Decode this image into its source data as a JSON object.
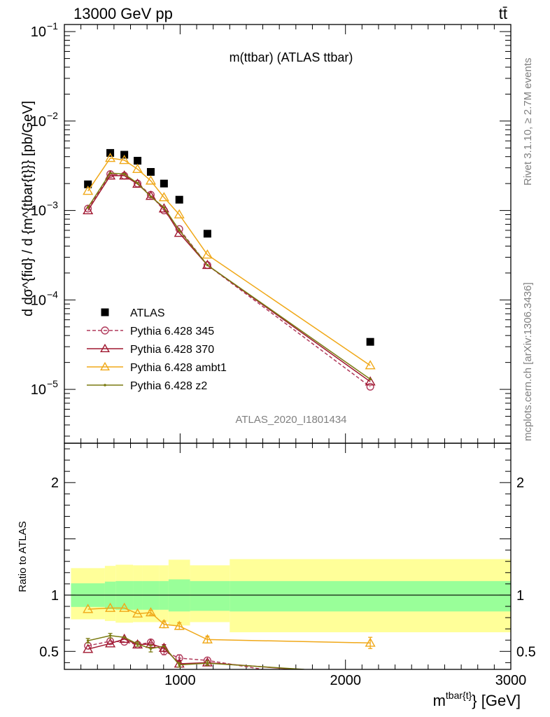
{
  "header": {
    "left": "13000 GeV pp",
    "right": "tt̄"
  },
  "side_labels": {
    "rivet": "Rivet 3.1.10, ≥ 2.7M events",
    "mcplots": "mcplots.cern.ch [arXiv:1306.3436]"
  },
  "watermark": "ATLAS_2020_I1801434",
  "chart_data": [
    {
      "type": "scatter",
      "title": "m(ttbar) (ATLAS ttbar)",
      "ylabel": "d dσ^{fid} / d {m^{tbar{t}}} [pb/GeV]",
      "yscale": "log",
      "xlim": [
        300,
        3000
      ],
      "ylim": [
        2.5e-06,
        0.12
      ],
      "yticks": [
        {
          "value": 0.1,
          "label": "10^-1",
          "base": "10",
          "exp": "−1"
        },
        {
          "value": 0.01,
          "label": "10^-2",
          "base": "10",
          "exp": "−2"
        },
        {
          "value": 0.001,
          "label": "10^-3",
          "base": "10",
          "exp": "−3"
        },
        {
          "value": 0.0001,
          "label": "10^-4",
          "base": "10",
          "exp": "−4"
        },
        {
          "value": 1e-05,
          "label": "10^-5",
          "base": "10",
          "exp": "−5"
        }
      ],
      "x": [
        442.5,
        577.5,
        662.5,
        742.5,
        822.5,
        902.5,
        995,
        1165,
        2150
      ],
      "series": [
        {
          "name": "ATLAS",
          "color": "#000000",
          "marker": "square",
          "values": [
            0.00196,
            0.0044,
            0.0042,
            0.0036,
            0.0027,
            0.002,
            0.00132,
            0.00055,
            3.4e-05
          ]
        },
        {
          "name": "Pythia 6.428 345",
          "color": "#b03a5b",
          "marker": "circle",
          "dash": true,
          "values": [
            0.00105,
            0.00255,
            0.00245,
            0.002,
            0.0015,
            0.001,
            0.00062,
            0.000245,
            1.07e-05
          ]
        },
        {
          "name": "Pythia 6.428 370",
          "color": "#a01830",
          "marker": "triangle",
          "values": [
            0.001,
            0.00245,
            0.00245,
            0.00198,
            0.00145,
            0.00105,
            0.00056,
            0.000245,
            1.22e-05
          ]
        },
        {
          "name": "Pythia 6.428 ambt1",
          "color": "#f0a818",
          "marker": "triangle",
          "values": [
            0.00165,
            0.00385,
            0.00365,
            0.0029,
            0.00215,
            0.0014,
            0.0009,
            0.00032,
            1.85e-05
          ]
        },
        {
          "name": "Pythia 6.428 z2",
          "color": "#7a7a10",
          "marker": "dot",
          "values": [
            0.00108,
            0.00262,
            0.00255,
            0.00202,
            0.00143,
            0.00108,
            0.0006,
            0.000245,
            1.3e-05
          ]
        }
      ],
      "legend": "center-left"
    },
    {
      "type": "scatter",
      "ylabel": "Ratio to ATLAS",
      "xlabel": "m^{tbar{t}} [GeV]",
      "xlabel_main": "m",
      "xlabel_sup": "tbar{t}",
      "xlabel_tail": "} [GeV]",
      "xlim": [
        300,
        3000
      ],
      "ylim": [
        0.34,
        2.35
      ],
      "xticks": [
        {
          "value": 1000,
          "label": "1000"
        },
        {
          "value": 2000,
          "label": "2000"
        },
        {
          "value": 3000,
          "label": "3000"
        }
      ],
      "yticks": [
        {
          "value": 0.5,
          "label": "0.5"
        },
        {
          "value": 1,
          "label": "1"
        },
        {
          "value": 2,
          "label": "2"
        }
      ],
      "bands": {
        "edges": [
          340,
          545,
          610,
          715,
          770,
          875,
          930,
          1060,
          1300,
          3000
        ],
        "inner_lo": [
          0.895,
          0.875,
          0.87,
          0.87,
          0.87,
          0.87,
          0.855,
          0.86,
          0.855
        ],
        "inner_hi": [
          1.105,
          1.12,
          1.125,
          1.125,
          1.125,
          1.125,
          1.14,
          1.125,
          1.125
        ],
        "outer_lo": [
          0.785,
          0.77,
          0.755,
          0.76,
          0.76,
          0.76,
          0.73,
          0.76,
          0.67
        ],
        "outer_hi": [
          1.24,
          1.26,
          1.27,
          1.265,
          1.265,
          1.265,
          1.315,
          1.265,
          1.32
        ],
        "inner_color": "#99ff99",
        "outer_color": "#ffff99"
      },
      "reference": 1.0,
      "series": [
        {
          "name": "Pythia 6.428 345",
          "color": "#b03a5b",
          "marker": "circle",
          "dash": true,
          "x": [
            442.5,
            577.5,
            662.5,
            742.5,
            822.5,
            902.5,
            995,
            1165,
            1500
          ],
          "values": [
            0.55,
            0.59,
            0.585,
            0.56,
            0.58,
            0.5,
            0.44,
            0.42,
            0.34
          ],
          "err": [
            0,
            0,
            0,
            0,
            0,
            0.03,
            0.03,
            0,
            0
          ]
        },
        {
          "name": "Pythia 6.428 370",
          "color": "#a01830",
          "marker": "triangle",
          "x": [
            442.5,
            577.5,
            662.5,
            742.5,
            822.5,
            902.5,
            995,
            1165,
            1700
          ],
          "values": [
            0.52,
            0.57,
            0.61,
            0.56,
            0.565,
            0.53,
            0.39,
            0.4,
            0.34
          ],
          "err": [
            0,
            0,
            0,
            0,
            0,
            0.03,
            0.03,
            0.02,
            0
          ]
        },
        {
          "name": "Pythia 6.428 ambt1",
          "color": "#f0a818",
          "marker": "triangle",
          "x": [
            442.5,
            577.5,
            662.5,
            742.5,
            822.5,
            902.5,
            995,
            1165,
            2150
          ],
          "values": [
            0.875,
            0.885,
            0.885,
            0.835,
            0.845,
            0.74,
            0.725,
            0.605,
            0.575
          ],
          "err": [
            0,
            0,
            0,
            0,
            0.02,
            0.03,
            0.03,
            0.03,
            0.05
          ]
        },
        {
          "name": "Pythia 6.428 z2",
          "color": "#7a7a10",
          "marker": "dot",
          "x": [
            442.5,
            577.5,
            662.5,
            742.5,
            822.5,
            902.5,
            995,
            1165,
            1750
          ],
          "values": [
            0.595,
            0.64,
            0.625,
            0.565,
            0.525,
            0.545,
            0.38,
            0.395,
            0.34
          ],
          "err": [
            0.02,
            0.02,
            0,
            0.02,
            0.03,
            0,
            0.02,
            0.02,
            0
          ]
        }
      ]
    }
  ]
}
